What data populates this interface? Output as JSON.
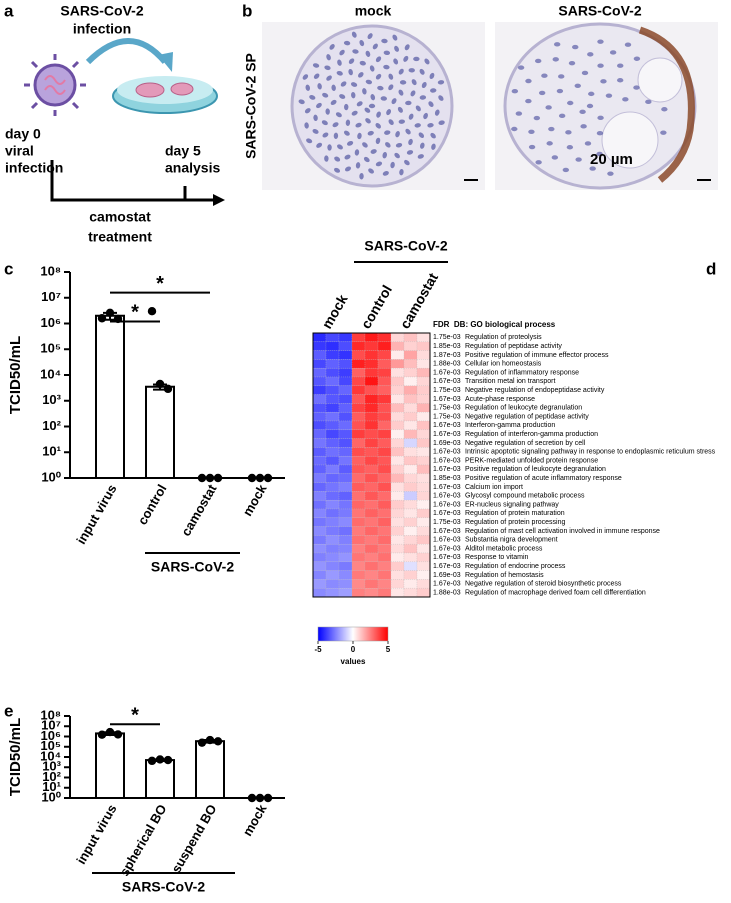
{
  "panel_labels": [
    "a",
    "b",
    "c",
    "d",
    "e"
  ],
  "schematic": {
    "title": [
      "SARS-CoV-2",
      "infection"
    ],
    "start": [
      "day 0",
      "viral",
      "infection"
    ],
    "end": [
      "day 5",
      "analysis"
    ],
    "treatment": [
      "camostat",
      "treatment"
    ]
  },
  "histology": {
    "columns": [
      "mock",
      "SARS-CoV-2"
    ],
    "row_label": "SARS-CoV-2 SP",
    "scale_bar": "20 µm"
  },
  "chart_data": [
    {
      "type": "bar",
      "ylabel": "TCID50/mL",
      "log_scale": true,
      "color": "#ffffff",
      "categories": [
        "input virus",
        "control",
        "camostat",
        "mock"
      ],
      "values": [
        2000000,
        3500,
        1,
        1
      ],
      "errors": [
        600000,
        800,
        0,
        0
      ],
      "points": [
        [
          1600000,
          2600000,
          1500000
        ],
        [
          3000000,
          4500,
          2900
        ],
        [
          1,
          1,
          1
        ],
        [
          1,
          1,
          1
        ]
      ],
      "ylim": [
        1,
        100000000
      ],
      "yticks": [
        {
          "value": 1,
          "label": "10⁰"
        },
        {
          "value": 10,
          "label": "10¹"
        },
        {
          "value": 100,
          "label": "10²"
        },
        {
          "value": 1000,
          "label": "10³"
        },
        {
          "value": 10000,
          "label": "10⁴"
        },
        {
          "value": 100000,
          "label": "10⁵"
        },
        {
          "value": 1000000,
          "label": "10⁶"
        },
        {
          "value": 10000000,
          "label": "10⁷"
        },
        {
          "value": 100000000,
          "label": "10⁸"
        }
      ],
      "group_label": "SARS-CoV-2",
      "annotations": [
        {
          "text": "*",
          "between": [
            0,
            2
          ]
        },
        {
          "text": "*",
          "between": [
            0,
            1
          ]
        }
      ]
    },
    {
      "type": "heatmap",
      "columns": [
        "mock",
        "control",
        "camostat"
      ],
      "column_group": "SARS-CoV-2",
      "header": "FDR  DB: GO biological process",
      "fdr": [
        "1.75e-03",
        "1.85e-03",
        "1.87e-03",
        "1.88e-03",
        "1.67e-03",
        "1.67e-03",
        "1.75e-03",
        "1.67e-03",
        "1.75e-03",
        "1.75e-03",
        "1.67e-03",
        "1.67e-03",
        "1.69e-03",
        "1.67e-03",
        "1.67e-03",
        "1.67e-03",
        "1.85e-03",
        "1.67e-03",
        "1.67e-03",
        "1.67e-03",
        "1.67e-03",
        "1.75e-03",
        "1.67e-03",
        "1.67e-03",
        "1.67e-03",
        "1.67e-03",
        "1.67e-03",
        "1.69e-03",
        "1.67e-03",
        "1.88e-03"
      ],
      "rows": [
        "Regulation of proteolysis",
        "Regulation of peptidase activity",
        "Positive regulation of immune effector process",
        "Cellular ion homeostasis",
        "Regulation of inflammatory response",
        "Transition metal ion transport",
        "Negative regulation of endopeptidase activity",
        "Acute-phase response",
        "Regulation of leukocyte degranulation",
        "Negative regulation of peptidase activity",
        "Interferon-gamma production",
        "Regulation of interferon-gamma production",
        "Negative regulation of secretion by cell",
        "Intrinsic apoptotic signaling pathway in response to endoplasmic reticulum stress",
        "PERK-mediated unfolded protein response",
        "Positive regulation of leukocyte degranulation",
        "Positive regulation of acute inflammatory response",
        "Calcium ion import",
        "Glycosyl compound metabolic process",
        "ER-nucleus signaling pathway",
        "Regulation of protein maturation",
        "Regulation of protein processing",
        "Regulation of mast cell activation involved in immune response",
        "Substantia nigra development",
        "Alditol metabolic process",
        "Response to vitamin",
        "Regulation of endocrine process",
        "Regulation of hemostasis",
        "Negative regulation of steroid biosynthetic process",
        "Regulation of macrophage derived foam cell differentiation"
      ],
      "values": [
        [
          -4.2,
          -3.6,
          -3.9,
          3.8,
          4.5,
          4.1,
          0.8,
          1.2,
          0.6
        ],
        [
          -3.9,
          -4.1,
          -3.5,
          4.2,
          3.9,
          4.4,
          1.5,
          0.9,
          1.1
        ],
        [
          -3.2,
          -3.8,
          -4.0,
          3.5,
          4.0,
          3.6,
          0.4,
          1.8,
          0.7
        ],
        [
          -3.6,
          -3.1,
          -3.4,
          4.4,
          4.1,
          3.2,
          2.0,
          1.3,
          0.5
        ],
        [
          -3.0,
          -3.5,
          -3.8,
          3.1,
          3.9,
          3.7,
          0.6,
          0.9,
          1.4
        ],
        [
          -3.3,
          -2.9,
          -3.6,
          3.6,
          4.6,
          3.3,
          1.1,
          0.3,
          0.8
        ],
        [
          -3.8,
          -3.4,
          -3.0,
          3.9,
          3.4,
          3.1,
          0.9,
          1.6,
          1.0
        ],
        [
          -2.8,
          -3.3,
          -3.5,
          3.3,
          4.3,
          3.9,
          0.5,
          1.2,
          0.9
        ],
        [
          -3.4,
          -3.7,
          -3.1,
          3.7,
          4.2,
          3.4,
          1.3,
          0.7,
          1.5
        ],
        [
          -3.1,
          -2.8,
          -3.4,
          3.2,
          3.8,
          3.5,
          0.7,
          1.0,
          0.4
        ],
        [
          -3.5,
          -3.2,
          -2.9,
          3.4,
          4.0,
          3.0,
          1.0,
          0.5,
          1.2
        ],
        [
          -3.0,
          -3.6,
          -3.3,
          3.8,
          3.5,
          3.7,
          0.3,
          1.4,
          0.8
        ],
        [
          -2.7,
          -3.1,
          -3.4,
          3.0,
          3.7,
          3.2,
          0.8,
          -0.8,
          1.1
        ],
        [
          -3.2,
          -2.8,
          -3.0,
          3.5,
          3.3,
          3.6,
          1.2,
          0.6,
          0.5
        ],
        [
          -2.9,
          -3.3,
          -2.7,
          3.1,
          3.6,
          3.3,
          0.5,
          1.1,
          0.9
        ],
        [
          -3.1,
          -2.6,
          -3.2,
          3.3,
          3.1,
          3.5,
          0.9,
          0.4,
          1.3
        ],
        [
          -2.6,
          -3.0,
          -2.9,
          2.9,
          3.4,
          3.0,
          1.4,
          0.8,
          0.6
        ],
        [
          -3.0,
          -2.7,
          -2.5,
          3.2,
          3.0,
          3.4,
          0.6,
          1.0,
          0.7
        ],
        [
          -2.5,
          -2.9,
          -3.1,
          2.8,
          3.3,
          2.9,
          0.4,
          -1.0,
          0.8
        ],
        [
          -2.8,
          -2.4,
          -2.7,
          3.0,
          2.8,
          3.2,
          1.0,
          0.7,
          0.3
        ],
        [
          -2.4,
          -2.8,
          -2.6,
          2.7,
          3.1,
          2.8,
          0.8,
          0.5,
          1.0
        ],
        [
          -2.7,
          -2.5,
          -2.3,
          2.9,
          2.7,
          3.1,
          0.6,
          0.9,
          0.4
        ],
        [
          -2.3,
          -2.6,
          -2.8,
          2.6,
          3.0,
          2.7,
          0.9,
          0.3,
          0.7
        ],
        [
          -2.6,
          -2.2,
          -2.5,
          2.8,
          2.6,
          2.9,
          0.5,
          0.8,
          1.1
        ],
        [
          -2.2,
          -2.5,
          -2.4,
          2.5,
          2.9,
          2.6,
          0.7,
          1.2,
          0.5
        ],
        [
          -2.5,
          -2.3,
          -2.1,
          2.7,
          2.5,
          2.8,
          0.4,
          0.6,
          0.9
        ],
        [
          -2.1,
          -2.4,
          -2.6,
          2.4,
          2.8,
          2.5,
          1.0,
          -0.6,
          0.6
        ],
        [
          -2.4,
          -2.0,
          -2.3,
          2.6,
          2.4,
          2.7,
          0.6,
          0.9,
          0.3
        ],
        [
          -2.0,
          -2.3,
          -2.2,
          2.3,
          2.7,
          2.4,
          0.8,
          0.4,
          0.7
        ],
        [
          -2.3,
          -2.1,
          -1.9,
          2.5,
          2.3,
          2.6,
          0.5,
          0.7,
          1.0
        ]
      ],
      "zlim": [
        -5,
        5
      ],
      "zticks": [
        -5,
        0,
        5
      ],
      "colorbar_label": "values"
    },
    {
      "type": "bar",
      "ylabel": "TCID50/mL",
      "log_scale": true,
      "color": "#ffffff",
      "categories": [
        "input virus",
        "spherical BO",
        "suspend BO",
        "mock"
      ],
      "values": [
        2000000,
        5000,
        350000,
        1
      ],
      "errors": [
        600000,
        900,
        100000,
        0
      ],
      "points": [
        [
          1500000,
          2700000,
          1600000
        ],
        [
          4200,
          5800,
          5000
        ],
        [
          250000,
          450000,
          340000
        ],
        [
          1,
          1,
          1
        ]
      ],
      "ylim": [
        1,
        100000000
      ],
      "yticks": [
        {
          "value": 1,
          "label": "10⁰"
        },
        {
          "value": 10,
          "label": "10¹"
        },
        {
          "value": 100,
          "label": "10²"
        },
        {
          "value": 1000,
          "label": "10³"
        },
        {
          "value": 10000,
          "label": "10⁴"
        },
        {
          "value": 100000,
          "label": "10⁵"
        },
        {
          "value": 1000000,
          "label": "10⁶"
        },
        {
          "value": 10000000,
          "label": "10⁷"
        },
        {
          "value": 100000000,
          "label": "10⁸"
        }
      ],
      "group_label": "SARS-CoV-2",
      "annotations": [
        {
          "text": "*",
          "between": [
            0,
            1
          ]
        }
      ]
    }
  ]
}
